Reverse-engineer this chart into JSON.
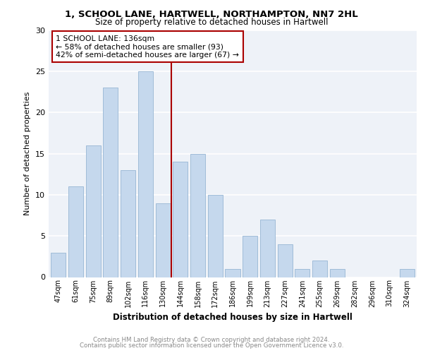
{
  "title1": "1, SCHOOL LANE, HARTWELL, NORTHAMPTON, NN7 2HL",
  "title2": "Size of property relative to detached houses in Hartwell",
  "xlabel": "Distribution of detached houses by size in Hartwell",
  "ylabel": "Number of detached properties",
  "categories": [
    "47sqm",
    "61sqm",
    "75sqm",
    "89sqm",
    "102sqm",
    "116sqm",
    "130sqm",
    "144sqm",
    "158sqm",
    "172sqm",
    "186sqm",
    "199sqm",
    "213sqm",
    "227sqm",
    "241sqm",
    "255sqm",
    "269sqm",
    "282sqm",
    "296sqm",
    "310sqm",
    "324sqm"
  ],
  "values": [
    3,
    11,
    16,
    23,
    13,
    25,
    9,
    14,
    15,
    10,
    1,
    5,
    7,
    4,
    1,
    2,
    1,
    0,
    0,
    0,
    1
  ],
  "bar_color": "#c5d8ed",
  "bar_edge_color": "#a0bcd8",
  "vline_x": 6.5,
  "vline_color": "#aa0000",
  "annotation_text": "1 SCHOOL LANE: 136sqm\n← 58% of detached houses are smaller (93)\n42% of semi-detached houses are larger (67) →",
  "annotation_box_color": "#ffffff",
  "annotation_box_edge": "#aa0000",
  "ylim": [
    0,
    30
  ],
  "yticks": [
    0,
    5,
    10,
    15,
    20,
    25,
    30
  ],
  "footer1": "Contains HM Land Registry data © Crown copyright and database right 2024.",
  "footer2": "Contains public sector information licensed under the Open Government Licence v3.0.",
  "background_color": "#eef2f8",
  "grid_color": "#ffffff"
}
